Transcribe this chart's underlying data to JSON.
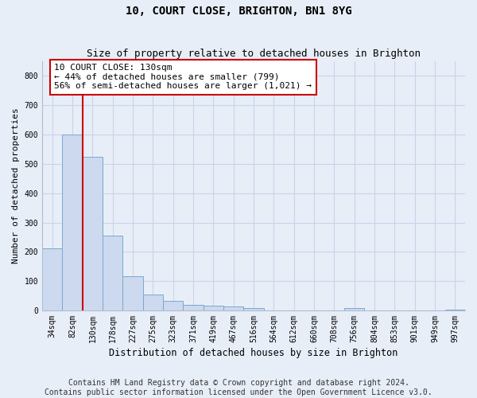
{
  "title": "10, COURT CLOSE, BRIGHTON, BN1 8YG",
  "subtitle": "Size of property relative to detached houses in Brighton",
  "xlabel": "Distribution of detached houses by size in Brighton",
  "ylabel": "Number of detached properties",
  "footer_line1": "Contains HM Land Registry data © Crown copyright and database right 2024.",
  "footer_line2": "Contains public sector information licensed under the Open Government Licence v3.0.",
  "bar_labels": [
    "34sqm",
    "82sqm",
    "130sqm",
    "178sqm",
    "227sqm",
    "275sqm",
    "323sqm",
    "371sqm",
    "419sqm",
    "467sqm",
    "516sqm",
    "564sqm",
    "612sqm",
    "660sqm",
    "708sqm",
    "756sqm",
    "804sqm",
    "853sqm",
    "901sqm",
    "949sqm",
    "997sqm"
  ],
  "bar_values": [
    213,
    600,
    525,
    255,
    117,
    55,
    32,
    20,
    17,
    14,
    9,
    0,
    0,
    0,
    0,
    7,
    0,
    0,
    0,
    0,
    2
  ],
  "bar_color": "#cdd9ee",
  "bar_edge_color": "#7aa8d0",
  "highlight_index": 2,
  "highlight_color": "#cc0000",
  "annotation_text": "10 COURT CLOSE: 130sqm\n← 44% of detached houses are smaller (799)\n56% of semi-detached houses are larger (1,021) →",
  "annotation_box_color": "#ffffff",
  "annotation_box_edge_color": "#cc0000",
  "ylim": [
    0,
    850
  ],
  "yticks": [
    0,
    100,
    200,
    300,
    400,
    500,
    600,
    700,
    800
  ],
  "bg_color": "#e8eef8",
  "plot_bg_color": "#e8eef8",
  "grid_color": "#c8d4e8",
  "title_fontsize": 10,
  "subtitle_fontsize": 9,
  "xlabel_fontsize": 8.5,
  "ylabel_fontsize": 8,
  "tick_fontsize": 7,
  "footer_fontsize": 7,
  "annot_fontsize": 8
}
